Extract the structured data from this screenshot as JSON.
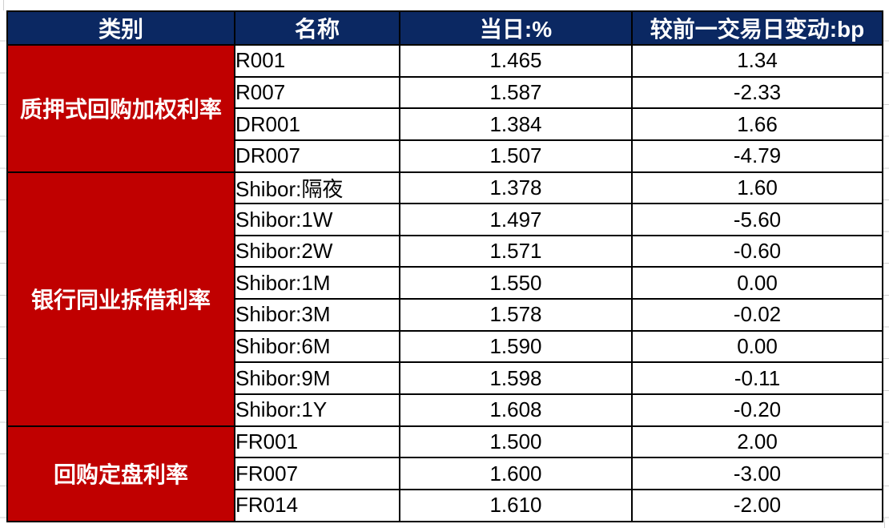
{
  "colors": {
    "header_bg": "#0b2862",
    "header_text": "#ffffff",
    "category_bg": "#c00000",
    "category_text": "#ffffff",
    "grid_border": "#000000",
    "margin_gridline": "#cfcfcf"
  },
  "table": {
    "headers": [
      "类别",
      "名称",
      "当日:%",
      "较前一交易日变动:bp"
    ],
    "groups": [
      {
        "category": "质押式回购加权利率",
        "rows": [
          {
            "name": "R001",
            "today": "1.465",
            "change": "1.34"
          },
          {
            "name": "R007",
            "today": "1.587",
            "change": "-2.33"
          },
          {
            "name": "DR001",
            "today": "1.384",
            "change": "1.66"
          },
          {
            "name": "DR007",
            "today": "1.507",
            "change": "-4.79"
          }
        ]
      },
      {
        "category": "银行同业拆借利率",
        "rows": [
          {
            "name": "Shibor:隔夜",
            "today": "1.378",
            "change": "1.60"
          },
          {
            "name": "Shibor:1W",
            "today": "1.497",
            "change": "-5.60"
          },
          {
            "name": "Shibor:2W",
            "today": "1.571",
            "change": "-0.60"
          },
          {
            "name": "Shibor:1M",
            "today": "1.550",
            "change": "0.00"
          },
          {
            "name": "Shibor:3M",
            "today": "1.578",
            "change": "-0.02"
          },
          {
            "name": "Shibor:6M",
            "today": "1.590",
            "change": "0.00"
          },
          {
            "name": "Shibor:9M",
            "today": "1.598",
            "change": "-0.11"
          },
          {
            "name": "Shibor:1Y",
            "today": "1.608",
            "change": "-0.20"
          }
        ]
      },
      {
        "category": "回购定盘利率",
        "rows": [
          {
            "name": "FR001",
            "today": "1.500",
            "change": "2.00"
          },
          {
            "name": "FR007",
            "today": "1.600",
            "change": "-3.00"
          },
          {
            "name": "FR014",
            "today": "1.610",
            "change": "-2.00"
          }
        ]
      }
    ]
  },
  "chart_data": {
    "type": "table",
    "columns": [
      "类别",
      "名称",
      "当日:%",
      "较前一交易日变动:bp"
    ],
    "rows": [
      [
        "质押式回购加权利率",
        "R001",
        1.465,
        1.34
      ],
      [
        "质押式回购加权利率",
        "R007",
        1.587,
        -2.33
      ],
      [
        "质押式回购加权利率",
        "DR001",
        1.384,
        1.66
      ],
      [
        "质押式回购加权利率",
        "DR007",
        1.507,
        -4.79
      ],
      [
        "银行同业拆借利率",
        "Shibor:隔夜",
        1.378,
        1.6
      ],
      [
        "银行同业拆借利率",
        "Shibor:1W",
        1.497,
        -5.6
      ],
      [
        "银行同业拆借利率",
        "Shibor:2W",
        1.571,
        -0.6
      ],
      [
        "银行同业拆借利率",
        "Shibor:1M",
        1.55,
        0.0
      ],
      [
        "银行同业拆借利率",
        "Shibor:3M",
        1.578,
        -0.02
      ],
      [
        "银行同业拆借利率",
        "Shibor:6M",
        1.59,
        0.0
      ],
      [
        "银行同业拆借利率",
        "Shibor:9M",
        1.598,
        -0.11
      ],
      [
        "银行同业拆借利率",
        "Shibor:1Y",
        1.608,
        -0.2
      ],
      [
        "回购定盘利率",
        "FR001",
        1.5,
        2.0
      ],
      [
        "回购定盘利率",
        "FR007",
        1.6,
        -3.0
      ],
      [
        "回购定盘利率",
        "FR014",
        1.61,
        -2.0
      ]
    ]
  }
}
